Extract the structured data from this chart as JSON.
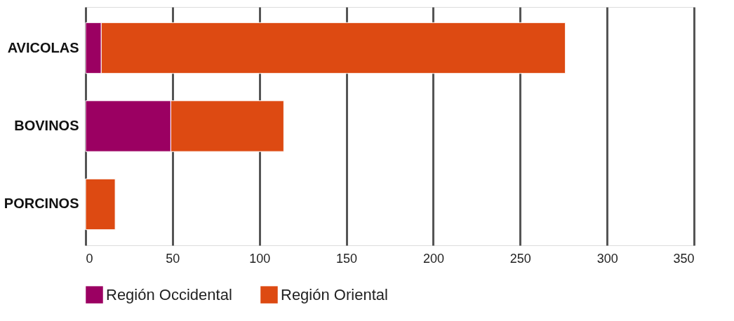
{
  "chart_data": {
    "type": "bar",
    "orientation": "horizontal",
    "stacked": true,
    "categories": [
      "AVICOLAS",
      "BOVINOS",
      "PORCINOS"
    ],
    "series": [
      {
        "name": "Región Occidental",
        "color": "#9b0062",
        "values": [
          9,
          49,
          0
        ]
      },
      {
        "name": "Región Oriental",
        "color": "#dd4a12",
        "values": [
          267,
          65,
          17
        ]
      }
    ],
    "xlim": [
      0,
      350
    ],
    "xticks": [
      0,
      50,
      100,
      150,
      200,
      250,
      300,
      350
    ],
    "grid": "x",
    "legend": "bottom"
  }
}
